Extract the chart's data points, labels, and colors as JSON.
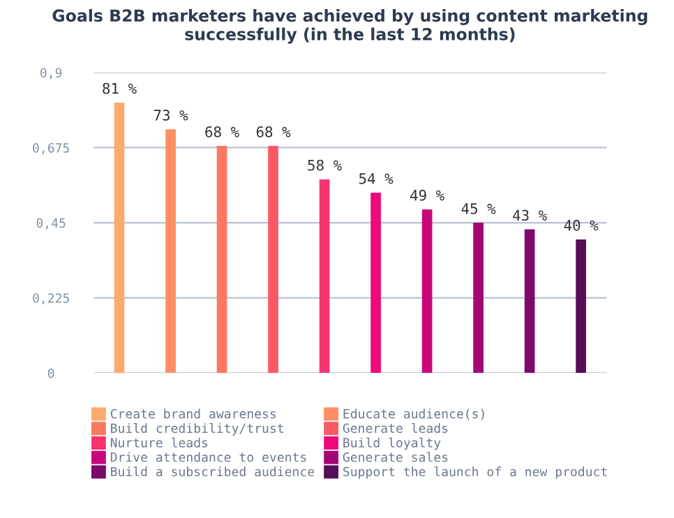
{
  "chart_data": {
    "type": "bar",
    "title": "Goals B2B marketers have achieved by using content marketing successfully (in the last 12 months)",
    "categories": [
      null,
      null,
      null,
      null,
      null,
      null,
      null,
      null,
      null,
      null
    ],
    "series": [
      {
        "name": "Create brand awareness",
        "color": "#fdaa6e",
        "values": [
          0.81,
          null,
          null,
          null,
          null,
          null,
          null,
          null,
          null,
          null
        ],
        "value_labels": [
          "81 %",
          null,
          null,
          null,
          null,
          null,
          null,
          null,
          null,
          null
        ]
      },
      {
        "name": "Educate audience(s)",
        "color": "#fd8f62",
        "values": [
          null,
          0.73,
          null,
          null,
          null,
          null,
          null,
          null,
          null,
          null
        ],
        "value_labels": [
          null,
          "73 %",
          null,
          null,
          null,
          null,
          null,
          null,
          null,
          null
        ]
      },
      {
        "name": "Build credibility/trust",
        "color": "#fd785f",
        "values": [
          null,
          null,
          0.68,
          null,
          null,
          null,
          null,
          null,
          null,
          null
        ],
        "value_labels": [
          null,
          null,
          "68 %",
          null,
          null,
          null,
          null,
          null,
          null,
          null
        ]
      },
      {
        "name": "Generate leads",
        "color": "#fc5865",
        "values": [
          null,
          null,
          null,
          0.68,
          null,
          null,
          null,
          null,
          null,
          null
        ],
        "value_labels": [
          null,
          null,
          null,
          "68 %",
          null,
          null,
          null,
          null,
          null,
          null
        ]
      },
      {
        "name": "Nurture leads",
        "color": "#fb3270",
        "values": [
          null,
          null,
          null,
          null,
          0.58,
          null,
          null,
          null,
          null,
          null
        ],
        "value_labels": [
          null,
          null,
          null,
          null,
          "58 %",
          null,
          null,
          null,
          null,
          null
        ]
      },
      {
        "name": "Build loyalty",
        "color": "#ee0a7a",
        "values": [
          null,
          null,
          null,
          null,
          null,
          0.54,
          null,
          null,
          null,
          null
        ],
        "value_labels": [
          null,
          null,
          null,
          null,
          null,
          "54 %",
          null,
          null,
          null,
          null
        ]
      },
      {
        "name": "Drive attendance to events",
        "color": "#c8087a",
        "values": [
          null,
          null,
          null,
          null,
          null,
          null,
          0.49,
          null,
          null,
          null
        ],
        "value_labels": [
          null,
          null,
          null,
          null,
          null,
          null,
          "49 %",
          null,
          null,
          null
        ]
      },
      {
        "name": "Generate sales",
        "color": "#a30774",
        "values": [
          null,
          null,
          null,
          null,
          null,
          null,
          null,
          0.45,
          null,
          null
        ],
        "value_labels": [
          null,
          null,
          null,
          null,
          null,
          null,
          null,
          "45 %",
          null,
          null
        ]
      },
      {
        "name": "Build a subscribed audience",
        "color": "#7c0a6a",
        "values": [
          null,
          null,
          null,
          null,
          null,
          null,
          null,
          null,
          0.43,
          null
        ],
        "value_labels": [
          null,
          null,
          null,
          null,
          null,
          null,
          null,
          null,
          "43 %",
          null
        ]
      },
      {
        "name": "Support the launch of a new product",
        "color": "#560f57",
        "values": [
          null,
          null,
          null,
          null,
          null,
          null,
          null,
          null,
          null,
          0.4
        ],
        "value_labels": [
          null,
          null,
          null,
          null,
          null,
          null,
          null,
          null,
          null,
          "40 %"
        ]
      }
    ],
    "ylim": [
      0,
      0.9
    ],
    "yticks": [
      {
        "value": 0,
        "label": "0"
      },
      {
        "value": 0.225,
        "label": "0,225"
      },
      {
        "value": 0.45,
        "label": "0,45"
      },
      {
        "value": 0.675,
        "label": "0,675"
      },
      {
        "value": 0.9,
        "label": "0,9"
      }
    ],
    "grid": "y",
    "legend": "bottom"
  }
}
